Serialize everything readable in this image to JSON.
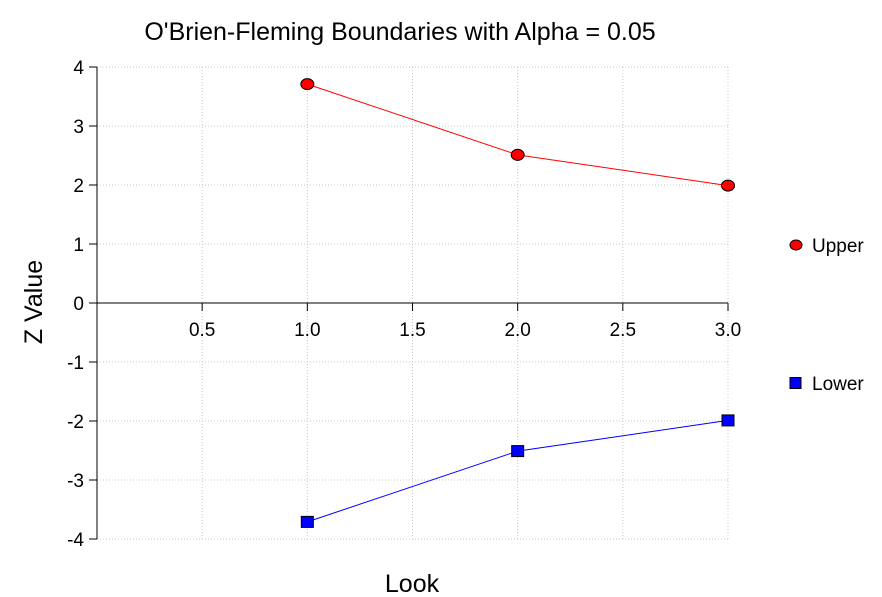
{
  "chart_data": {
    "type": "line",
    "title": "O'Brien-Fleming Boundaries with Alpha = 0.05",
    "xlabel": "Look",
    "ylabel": "Z Value",
    "xlim": [
      0,
      3
    ],
    "ylim": [
      -4,
      4
    ],
    "x_ticks": [
      0.5,
      1.0,
      1.5,
      2.0,
      2.5,
      3.0
    ],
    "x_tick_labels": [
      "0.5",
      "1.0",
      "1.5",
      "2.0",
      "2.5",
      "3.0"
    ],
    "y_ticks": [
      4,
      3,
      2,
      1,
      0,
      -1,
      -2,
      -3,
      -4
    ],
    "y_tick_labels": [
      "4",
      "3",
      "2",
      "1",
      "0",
      "-1",
      "-2",
      "-3",
      "-4"
    ],
    "grid": true,
    "legend_position": "right",
    "series": [
      {
        "name": "Upper",
        "x": [
          1,
          2,
          3
        ],
        "values": [
          3.71,
          2.51,
          1.99
        ],
        "color": "#ff0000",
        "marker": "circle"
      },
      {
        "name": "Lower",
        "x": [
          1,
          2,
          3
        ],
        "values": [
          -3.71,
          -2.51,
          -1.99
        ],
        "color": "#0000ff",
        "marker": "square"
      }
    ]
  }
}
